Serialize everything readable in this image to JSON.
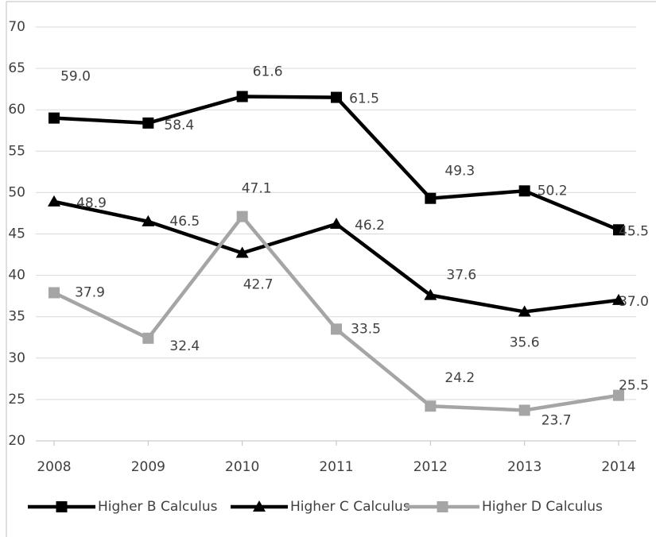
{
  "chart_data": {
    "type": "line",
    "categories": [
      "2008",
      "2009",
      "2010",
      "2011",
      "2012",
      "2013",
      "2014"
    ],
    "series": [
      {
        "name": "Higher B Calculus",
        "color": "#000000",
        "marker": "square",
        "values": [
          59.0,
          58.4,
          61.6,
          61.5,
          49.3,
          50.2,
          45.5
        ],
        "value_labels": [
          "59.0",
          "58.4",
          "61.6",
          "61.5",
          "49.3",
          "50.2",
          "45.5"
        ]
      },
      {
        "name": "Higher C Calculus",
        "color": "#000000",
        "marker": "triangle",
        "values": [
          48.9,
          46.5,
          42.7,
          46.2,
          37.6,
          35.6,
          37.0
        ],
        "value_labels": [
          "48.9",
          "46.5",
          "42.7",
          "46.2",
          "37.6",
          "35.6",
          "37.0"
        ]
      },
      {
        "name": "Higher D Calculus",
        "color": "#a5a5a5",
        "marker": "square",
        "values": [
          37.9,
          32.4,
          47.1,
          33.5,
          24.2,
          23.7,
          25.5
        ],
        "value_labels": [
          "37.9",
          "32.4",
          "47.1",
          "33.5",
          "24.2",
          "23.7",
          "25.5"
        ]
      }
    ],
    "ylim": [
      20,
      70
    ],
    "yticks": [
      20,
      25,
      30,
      35,
      40,
      45,
      50,
      55,
      60,
      65,
      70
    ],
    "grid": true,
    "legend": "bottom"
  }
}
